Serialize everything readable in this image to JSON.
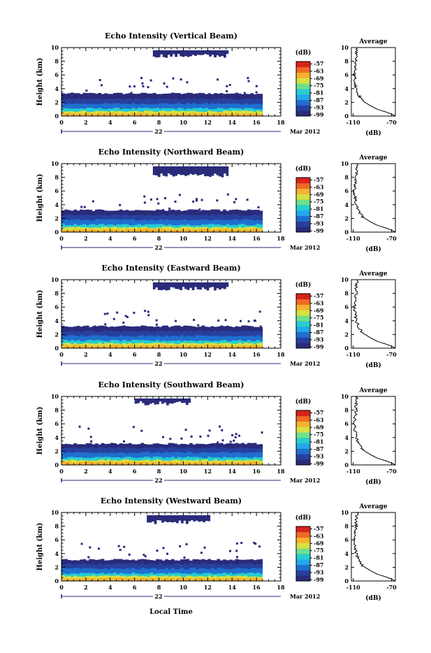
{
  "chart_data": {
    "type": "heatmap",
    "date_label": "Mar 2012",
    "day_label": "22",
    "x_tick_labels": [
      "0",
      "2",
      "4",
      "6",
      "8",
      "10",
      "12",
      "14",
      "16",
      "18"
    ],
    "y_tick_labels": [
      "0",
      "2",
      "4",
      "6",
      "8",
      "10"
    ],
    "xlim": [
      0,
      18
    ],
    "ylim": [
      0,
      10
    ],
    "ylabel": "Height (km)",
    "xlabel": "Local Time",
    "colorbar": {
      "unit": "(dB)",
      "range": [
        -100,
        -55
      ],
      "tick_values": [
        -99,
        -93,
        -87,
        -81,
        -75,
        -69,
        -63,
        -57
      ],
      "tick_labels": [
        "-99",
        "-93",
        "-87",
        "-81",
        "-75",
        "-69",
        "-63",
        "-57"
      ],
      "colors": [
        "#2a2a7a",
        "#27409c",
        "#1f6fd0",
        "#22a8e8",
        "#27cdd0",
        "#6fe08a",
        "#d8e040",
        "#f4b22e",
        "#ee6a26",
        "#d9231d"
      ]
    },
    "average": {
      "title": "Average",
      "xlabel": "(dB)",
      "xlim": [
        -112,
        -66
      ],
      "x_tick_labels": [
        "-110",
        "-70"
      ],
      "ylim": [
        0,
        10
      ],
      "y_tick_labels": [
        "0",
        "2",
        "4",
        "6",
        "8",
        "10"
      ]
    },
    "panels": [
      {
        "title": "Echo Intensity (Vertical Beam)",
        "layers": [
          {
            "level": -65,
            "h_bottom": 0.0,
            "h_top": 0.4,
            "t_start": 0,
            "t_end": 16.5
          },
          {
            "level": -72,
            "h_bottom": 0.3,
            "h_top": 0.7,
            "t_start": 0,
            "t_end": 16.5
          },
          {
            "level": -80,
            "h_bottom": 0.6,
            "h_top": 1.1,
            "t_start": 0,
            "t_end": 16.5
          },
          {
            "level": -88,
            "h_bottom": 1.0,
            "h_top": 1.8,
            "t_start": 0,
            "t_end": 16.5
          },
          {
            "level": -94,
            "h_bottom": 1.7,
            "h_top": 2.5,
            "t_start": 0,
            "t_end": 16.5
          },
          {
            "level": -99,
            "h_bottom": 2.4,
            "h_top": 3.3,
            "t_start": 0,
            "t_end": 16.5
          }
        ],
        "upper_echo": [
          {
            "t_start": 7.5,
            "t_end": 13.5,
            "h_bottom": 8.5,
            "h_top": 9.6
          }
        ],
        "profile": [
          [
            -66,
            0
          ],
          [
            -70,
            0.3
          ],
          [
            -76,
            0.6
          ],
          [
            -85,
            1.0
          ],
          [
            -92,
            1.5
          ],
          [
            -100,
            2.2
          ],
          [
            -104,
            3.0
          ],
          [
            -107,
            4.0
          ],
          [
            -108,
            5.0
          ],
          [
            -109,
            6.0
          ],
          [
            -108,
            7.0
          ],
          [
            -107,
            8.0
          ],
          [
            -107,
            9.0
          ],
          [
            -106,
            10
          ]
        ]
      },
      {
        "title": "Echo Intensity (Northward Beam)",
        "layers": [
          {
            "level": -65,
            "h_bottom": 0.0,
            "h_top": 0.4,
            "t_start": 0,
            "t_end": 16.5
          },
          {
            "level": -72,
            "h_bottom": 0.3,
            "h_top": 0.7,
            "t_start": 0,
            "t_end": 16.5
          },
          {
            "level": -80,
            "h_bottom": 0.6,
            "h_top": 1.1,
            "t_start": 0,
            "t_end": 16.5
          },
          {
            "level": -88,
            "h_bottom": 1.0,
            "h_top": 1.8,
            "t_start": 0,
            "t_end": 16.5
          },
          {
            "level": -94,
            "h_bottom": 1.7,
            "h_top": 2.5,
            "t_start": 0,
            "t_end": 16.5
          },
          {
            "level": -99,
            "h_bottom": 2.4,
            "h_top": 3.2,
            "t_start": 0,
            "t_end": 16.5
          }
        ],
        "upper_echo": [
          {
            "t_start": 7.5,
            "t_end": 13.5,
            "h_bottom": 8.0,
            "h_top": 9.6
          }
        ],
        "profile": [
          [
            -66,
            0
          ],
          [
            -70,
            0.3
          ],
          [
            -76,
            0.6
          ],
          [
            -85,
            1.0
          ],
          [
            -92,
            1.5
          ],
          [
            -100,
            2.2
          ],
          [
            -104,
            3.0
          ],
          [
            -107,
            4.0
          ],
          [
            -108,
            5.0
          ],
          [
            -109,
            6.0
          ],
          [
            -108,
            7.0
          ],
          [
            -107,
            8.0
          ],
          [
            -107,
            9.0
          ],
          [
            -106,
            10
          ]
        ]
      },
      {
        "title": "Echo Intensity (Eastward Beam)",
        "layers": [
          {
            "level": -65,
            "h_bottom": 0.0,
            "h_top": 0.4,
            "t_start": 0,
            "t_end": 16.5
          },
          {
            "level": -72,
            "h_bottom": 0.3,
            "h_top": 0.7,
            "t_start": 0,
            "t_end": 16.5
          },
          {
            "level": -80,
            "h_bottom": 0.6,
            "h_top": 1.1,
            "t_start": 0,
            "t_end": 16.5
          },
          {
            "level": -88,
            "h_bottom": 1.0,
            "h_top": 1.8,
            "t_start": 0,
            "t_end": 16.5
          },
          {
            "level": -94,
            "h_bottom": 1.7,
            "h_top": 2.5,
            "t_start": 0,
            "t_end": 16.5
          },
          {
            "level": -99,
            "h_bottom": 2.4,
            "h_top": 3.2,
            "t_start": 0,
            "t_end": 16.5
          }
        ],
        "upper_echo": [
          {
            "t_start": 7.5,
            "t_end": 13.5,
            "h_bottom": 8.4,
            "h_top": 9.6
          }
        ],
        "profile": [
          [
            -66,
            0
          ],
          [
            -70,
            0.3
          ],
          [
            -76,
            0.6
          ],
          [
            -85,
            1.0
          ],
          [
            -92,
            1.5
          ],
          [
            -100,
            2.2
          ],
          [
            -104,
            3.0
          ],
          [
            -107,
            4.0
          ],
          [
            -108,
            5.0
          ],
          [
            -109,
            6.0
          ],
          [
            -108,
            7.0
          ],
          [
            -107,
            8.0
          ],
          [
            -107,
            9.0
          ],
          [
            -106,
            10
          ]
        ]
      },
      {
        "title": "Echo Intensity (Southward Beam)",
        "layers": [
          {
            "level": -65,
            "h_bottom": 0.0,
            "h_top": 0.4,
            "t_start": 0,
            "t_end": 16.5
          },
          {
            "level": -72,
            "h_bottom": 0.3,
            "h_top": 0.7,
            "t_start": 0,
            "t_end": 16.5
          },
          {
            "level": -80,
            "h_bottom": 0.6,
            "h_top": 1.1,
            "t_start": 0,
            "t_end": 16.5
          },
          {
            "level": -88,
            "h_bottom": 1.0,
            "h_top": 1.8,
            "t_start": 0,
            "t_end": 16.5
          },
          {
            "level": -94,
            "h_bottom": 1.7,
            "h_top": 2.5,
            "t_start": 0,
            "t_end": 16.5
          },
          {
            "level": -99,
            "h_bottom": 2.4,
            "h_top": 3.1,
            "t_start": 0,
            "t_end": 16.5
          }
        ],
        "upper_echo": [
          {
            "t_start": 6.0,
            "t_end": 10.5,
            "h_bottom": 8.7,
            "h_top": 9.7
          }
        ],
        "profile": [
          [
            -66,
            0
          ],
          [
            -70,
            0.3
          ],
          [
            -76,
            0.6
          ],
          [
            -85,
            1.0
          ],
          [
            -92,
            1.5
          ],
          [
            -100,
            2.2
          ],
          [
            -104,
            3.0
          ],
          [
            -107,
            4.0
          ],
          [
            -108,
            5.0
          ],
          [
            -109,
            6.0
          ],
          [
            -108,
            7.0
          ],
          [
            -107,
            8.0
          ],
          [
            -107,
            9.0
          ],
          [
            -106,
            10
          ]
        ]
      },
      {
        "title": "Echo Intensity (Westward Beam)",
        "layers": [
          {
            "level": -65,
            "h_bottom": 0.0,
            "h_top": 0.4,
            "t_start": 0,
            "t_end": 16.5
          },
          {
            "level": -72,
            "h_bottom": 0.3,
            "h_top": 0.7,
            "t_start": 0,
            "t_end": 16.5
          },
          {
            "level": -80,
            "h_bottom": 0.6,
            "h_top": 1.1,
            "t_start": 0,
            "t_end": 16.5
          },
          {
            "level": -88,
            "h_bottom": 1.0,
            "h_top": 1.8,
            "t_start": 0,
            "t_end": 16.5
          },
          {
            "level": -94,
            "h_bottom": 1.7,
            "h_top": 2.5,
            "t_start": 0,
            "t_end": 16.5
          },
          {
            "level": -99,
            "h_bottom": 2.4,
            "h_top": 3.1,
            "t_start": 0,
            "t_end": 16.5
          }
        ],
        "upper_echo": [
          {
            "t_start": 7.0,
            "t_end": 12.0,
            "h_bottom": 8.3,
            "h_top": 9.6
          }
        ],
        "profile": [
          [
            -66,
            0
          ],
          [
            -70,
            0.3
          ],
          [
            -76,
            0.6
          ],
          [
            -85,
            1.0
          ],
          [
            -92,
            1.5
          ],
          [
            -100,
            2.2
          ],
          [
            -104,
            3.0
          ],
          [
            -107,
            4.0
          ],
          [
            -108,
            5.0
          ],
          [
            -109,
            6.0
          ],
          [
            -108,
            7.0
          ],
          [
            -107,
            8.0
          ],
          [
            -107,
            9.0
          ],
          [
            -106,
            10
          ]
        ]
      }
    ]
  }
}
